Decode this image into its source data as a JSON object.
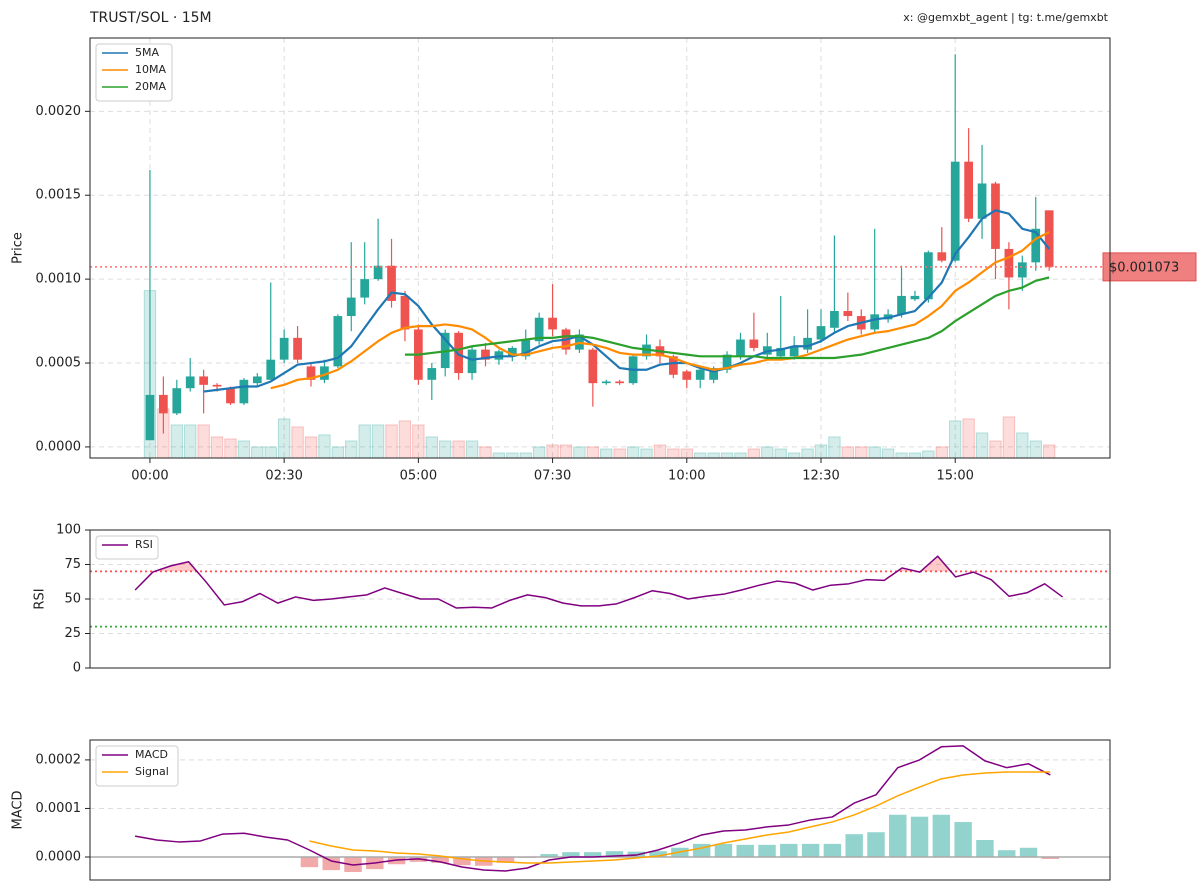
{
  "chart_data": [
    {
      "type": "candlestick",
      "title": "TRUST/SOL · 15M",
      "subtitle": "x: @gemxbt_agent | tg: t.me/gemxbt",
      "ylabel": "Price",
      "x": [
        0,
        15,
        30,
        45,
        60,
        75,
        90,
        105,
        120,
        135,
        150,
        165,
        180,
        195,
        210,
        225,
        240,
        255,
        270,
        285,
        300,
        315,
        330,
        345,
        360,
        375,
        390,
        405,
        420,
        435,
        450,
        465,
        480,
        495,
        510,
        525,
        540,
        555,
        570,
        585,
        600,
        615,
        630,
        645,
        660,
        675,
        690,
        705,
        720,
        735,
        750,
        765,
        780,
        795,
        810,
        825,
        840,
        855,
        870,
        885,
        900,
        915,
        930,
        945,
        960,
        975,
        990,
        1005
      ],
      "xlim": [
        -67,
        1073
      ],
      "xticks": [
        {
          "value": 0,
          "label": "00:00"
        },
        {
          "value": 150,
          "label": "02:30"
        },
        {
          "value": 300,
          "label": "05:00"
        },
        {
          "value": 450,
          "label": "07:30"
        },
        {
          "value": 600,
          "label": "10:00"
        },
        {
          "value": 750,
          "label": "12:30"
        },
        {
          "value": 900,
          "label": "15:00"
        }
      ],
      "ylim": [
        -6.6e-05,
        0.002437
      ],
      "yticks": [
        {
          "value": 0,
          "label": "0.0000"
        },
        {
          "value": 0.0005,
          "label": "0.0005"
        },
        {
          "value": 0.001,
          "label": "0.0010"
        },
        {
          "value": 0.0015,
          "label": "0.0015"
        },
        {
          "value": 0.002,
          "label": "0.0020"
        }
      ],
      "grid": true,
      "legend": "upper left",
      "up_color": "#26a69a",
      "down_color": "#ef5350",
      "open": [
        4e-05,
        0.00031,
        0.0002,
        0.00035,
        0.00042,
        0.00037,
        0.00035,
        0.00026,
        0.00038,
        0.0004,
        0.00052,
        0.00065,
        0.00048,
        0.0004,
        0.00048,
        0.00078,
        0.00089,
        0.001,
        0.00108,
        0.0009,
        0.0007,
        0.0004,
        0.00047,
        0.00068,
        0.00044,
        0.00058,
        0.00052,
        0.00054,
        0.00054,
        0.00063,
        0.00077,
        0.0007,
        0.00058,
        0.00058,
        0.00038,
        0.00039,
        0.00038,
        0.00054,
        0.0006,
        0.00054,
        0.00045,
        0.0004,
        0.0004,
        0.00046,
        0.00054,
        0.00064,
        0.00055,
        0.00054,
        0.00054,
        0.00058,
        0.00064,
        0.00071,
        0.00081,
        0.00078,
        0.0007,
        0.00076,
        0.00079,
        0.00088,
        0.00088,
        0.00116,
        0.00111,
        0.0017,
        0.00136,
        0.00157,
        0.00118,
        0.00101,
        0.0011,
        0.00141
      ],
      "high": [
        0.00165,
        0.00042,
        0.0004,
        0.00053,
        0.00046,
        0.00038,
        0.00036,
        0.00041,
        0.00044,
        0.00098,
        0.0007,
        0.00072,
        0.0005,
        0.00052,
        0.00079,
        0.00122,
        0.00122,
        0.00136,
        0.00124,
        0.00093,
        0.00073,
        0.0005,
        0.0007,
        0.00069,
        0.0006,
        0.00062,
        0.00058,
        0.0006,
        0.0007,
        0.0008,
        0.00097,
        0.00071,
        0.0007,
        0.00059,
        0.0004,
        0.0004,
        0.00055,
        0.00067,
        0.00064,
        0.00055,
        0.00046,
        0.00047,
        0.00048,
        0.00057,
        0.00068,
        0.0008,
        0.00068,
        0.0009,
        0.00066,
        0.00082,
        0.00082,
        0.00126,
        0.00092,
        0.00082,
        0.0013,
        0.00082,
        0.00108,
        0.00093,
        0.00117,
        0.00131,
        0.00234,
        0.0019,
        0.0018,
        0.00158,
        0.00122,
        0.00114,
        0.00149,
        0.00141
      ],
      "low": [
        4e-05,
        8e-05,
        0.00019,
        0.00033,
        0.0002,
        0.00033,
        0.00025,
        0.00025,
        0.00036,
        0.0004,
        0.0005,
        0.0005,
        0.00036,
        0.00038,
        0.00047,
        0.00069,
        0.00085,
        0.00099,
        0.00083,
        0.00063,
        0.00037,
        0.00028,
        0.00042,
        0.0004,
        0.0004,
        0.00048,
        0.00049,
        0.00051,
        0.00052,
        0.00061,
        0.00066,
        0.00055,
        0.00056,
        0.00024,
        0.00037,
        0.00037,
        0.00037,
        0.00052,
        0.0005,
        0.00041,
        0.00035,
        0.00035,
        0.00038,
        0.00044,
        0.00052,
        0.00057,
        0.00053,
        0.00052,
        0.00052,
        0.00056,
        0.00062,
        0.00068,
        0.00075,
        0.00067,
        0.00068,
        0.00074,
        0.00077,
        0.00087,
        0.00086,
        0.0011,
        0.0011,
        0.00134,
        0.00124,
        0.001,
        0.00082,
        0.00093,
        0.00105,
        0.00105
      ],
      "close": [
        0.00031,
        0.0002,
        0.00035,
        0.00042,
        0.00037,
        0.00036,
        0.00026,
        0.0004,
        0.00042,
        0.00052,
        0.00065,
        0.00052,
        0.0004,
        0.00048,
        0.00078,
        0.00089,
        0.001,
        0.00108,
        0.00087,
        0.0007,
        0.0004,
        0.00047,
        0.00068,
        0.00044,
        0.00058,
        0.00052,
        0.00057,
        0.00059,
        0.00064,
        0.00077,
        0.0007,
        0.00058,
        0.00067,
        0.00038,
        0.00039,
        0.00038,
        0.00054,
        0.00061,
        0.00054,
        0.00043,
        0.0004,
        0.00046,
        0.00047,
        0.00055,
        0.00064,
        0.00059,
        0.0006,
        0.00059,
        0.0006,
        0.00065,
        0.00072,
        0.00081,
        0.00078,
        0.0007,
        0.00079,
        0.00079,
        0.0009,
        0.0009,
        0.00116,
        0.00111,
        0.0017,
        0.00136,
        0.00157,
        0.00118,
        0.00101,
        0.0011,
        0.0013,
        0.001073
      ],
      "volume": [
        167,
        49,
        33,
        33,
        33,
        21,
        19,
        17,
        11,
        11,
        39,
        31,
        21,
        23,
        11,
        17,
        33,
        33,
        33,
        37,
        33,
        21,
        17,
        17,
        17,
        11,
        5,
        5,
        5,
        11,
        13,
        13,
        11,
        11,
        9,
        9,
        11,
        9,
        13,
        9,
        9,
        5,
        5,
        5,
        5,
        9,
        11,
        9,
        5,
        9,
        13,
        21,
        11,
        11,
        11,
        9,
        5,
        5,
        7,
        11,
        37,
        39,
        25,
        17,
        41,
        25,
        17,
        13
      ],
      "vlim": [
        0,
        419
      ],
      "series": [
        {
          "name": "5MA",
          "color": "#1f77b4",
          "values": [
            null,
            null,
            null,
            null,
            0.00033,
            0.00034,
            0.00035,
            0.00036,
            0.00036,
            0.00039,
            0.00044,
            0.00049,
            0.0005,
            0.00051,
            0.00053,
            0.0006,
            0.00071,
            0.00082,
            0.00092,
            0.00091,
            0.00084,
            0.00073,
            0.00064,
            0.00055,
            0.00052,
            0.00053,
            0.00054,
            0.00054,
            0.00056,
            0.0006,
            0.00063,
            0.00064,
            0.00066,
            0.00061,
            0.00054,
            0.00047,
            0.00046,
            0.00046,
            0.00049,
            0.0005,
            0.0005,
            0.00047,
            0.00045,
            0.00047,
            0.0005,
            0.00054,
            0.00057,
            0.00058,
            0.0006,
            0.0006,
            0.00063,
            0.00068,
            0.00072,
            0.00074,
            0.00076,
            0.00077,
            0.00079,
            0.00081,
            0.00089,
            0.00098,
            0.00115,
            0.00125,
            0.00136,
            0.00141,
            0.00139,
            0.0013,
            0.00128,
            0.00118
          ]
        },
        {
          "name": "10MA",
          "color": "#ff8c00",
          "values": [
            null,
            null,
            null,
            null,
            null,
            null,
            null,
            null,
            null,
            0.00035,
            0.00037,
            0.0004,
            0.00041,
            0.00043,
            0.00046,
            0.00051,
            0.00057,
            0.00063,
            0.00068,
            0.00071,
            0.00072,
            0.00072,
            0.00073,
            0.00072,
            0.0007,
            0.00065,
            0.00059,
            0.00055,
            0.00055,
            0.00057,
            0.00059,
            0.0006,
            0.00062,
            0.00061,
            0.00059,
            0.00056,
            0.00055,
            0.00055,
            0.00055,
            0.00053,
            0.0005,
            0.00048,
            0.00046,
            0.00047,
            0.00049,
            0.0005,
            0.00052,
            0.00052,
            0.00053,
            0.00055,
            0.00058,
            0.00061,
            0.00064,
            0.00066,
            0.00068,
            0.00069,
            0.00071,
            0.00073,
            0.00078,
            0.00084,
            0.00093,
            0.00098,
            0.00104,
            0.0011,
            0.00113,
            0.00117,
            0.00124,
            0.00128
          ]
        },
        {
          "name": "20MA",
          "color": "#2ca02c",
          "values": [
            null,
            null,
            null,
            null,
            null,
            null,
            null,
            null,
            null,
            null,
            null,
            null,
            null,
            null,
            null,
            null,
            null,
            null,
            null,
            0.00055,
            0.00055,
            0.00056,
            0.00057,
            0.00058,
            0.0006,
            0.00061,
            0.00062,
            0.00063,
            0.00064,
            0.00065,
            0.00065,
            0.00066,
            0.00066,
            0.00065,
            0.00063,
            0.00061,
            0.00059,
            0.00058,
            0.00057,
            0.00056,
            0.00055,
            0.00054,
            0.00054,
            0.00054,
            0.00054,
            0.00054,
            0.00053,
            0.00053,
            0.00053,
            0.00053,
            0.00053,
            0.00053,
            0.00054,
            0.00055,
            0.00057,
            0.00059,
            0.00061,
            0.00063,
            0.00065,
            0.00069,
            0.00075,
            0.0008,
            0.00085,
            0.0009,
            0.00093,
            0.00095,
            0.00099,
            0.00101
          ]
        }
      ],
      "last_price": {
        "value": 0.001073,
        "label": "$0.001073"
      },
      "last_price_color": "#f08080"
    },
    {
      "type": "line",
      "ylabel": "RSI",
      "x": [
        0,
        1,
        2,
        3,
        4,
        5,
        6,
        7,
        8,
        9,
        10,
        11,
        12,
        13,
        14,
        15,
        16,
        17,
        18,
        19,
        20,
        21,
        22,
        23,
        24,
        25,
        26,
        27,
        28,
        29,
        30,
        31,
        32,
        33,
        34,
        35,
        36,
        37,
        38,
        39,
        40,
        41,
        42,
        43,
        44,
        45,
        46,
        47,
        48,
        49,
        50,
        51,
        52
      ],
      "xlim": [
        -2.53,
        54.66
      ],
      "ylim": [
        0,
        100
      ],
      "yticks": [
        0,
        25,
        50,
        75,
        100
      ],
      "grid": true,
      "legend": "upper left",
      "thresholds": [
        {
          "value": 70,
          "color": "#ff4d4d",
          "fill": true
        },
        {
          "value": 30,
          "color": "#33aa33"
        }
      ],
      "series": [
        {
          "name": "RSI",
          "color": "#800080",
          "values": [
            56.5,
            69.6,
            74,
            77,
            62,
            45.7,
            48,
            54,
            47,
            51.5,
            49,
            50,
            51.5,
            53,
            58,
            54,
            50,
            50,
            43.5,
            44,
            43.5,
            49,
            53,
            51,
            47,
            45,
            45,
            46.5,
            51,
            56,
            54,
            50,
            52,
            53.5,
            56.5,
            60,
            63,
            61.5,
            56.5,
            60,
            61,
            64,
            63.5,
            72.5,
            69.5,
            81,
            66,
            69.5,
            64,
            52,
            54.5,
            61,
            51.5
          ]
        }
      ]
    },
    {
      "type": "line",
      "ylabel": "MACD",
      "x": [
        0,
        1,
        2,
        3,
        4,
        5,
        6,
        7,
        8,
        9,
        10,
        11,
        12,
        13,
        14,
        15,
        16,
        17,
        18,
        19,
        20,
        21,
        22,
        23,
        24,
        25,
        26,
        27,
        28,
        29,
        30,
        31,
        32,
        33,
        34,
        35,
        36,
        37,
        38,
        39,
        40,
        41,
        42
      ],
      "xlim": [
        -2.07,
        44.74
      ],
      "ylim": [
        -4.74e-05,
        0.000241
      ],
      "yticks": [
        {
          "value": 0,
          "label": "0.0000"
        },
        {
          "value": 0.0001,
          "label": "0.0001"
        },
        {
          "value": 0.0002,
          "label": "0.0002"
        }
      ],
      "grid": true,
      "legend": "upper left",
      "zero_line": true,
      "histogram": {
        "up_color": "#80cbc4",
        "down_color": "#ef9a9a",
        "values": [
          null,
          null,
          null,
          null,
          null,
          null,
          null,
          null,
          -2.1e-05,
          -2.7e-05,
          -3.1e-05,
          -2.5e-05,
          -1.5e-05,
          -1e-05,
          -1.2e-05,
          -1.7e-05,
          -1.8e-05,
          -1.2e-05,
          -2e-06,
          6e-06,
          1e-05,
          1e-05,
          1.2e-05,
          1.1e-05,
          1.2e-05,
          1.9e-05,
          2.7e-05,
          2.7e-05,
          2.5e-05,
          2.5e-05,
          2.7e-05,
          2.7e-05,
          2.7e-05,
          4.7e-05,
          5.1e-05,
          8.7e-05,
          8.3e-05,
          8.7e-05,
          7.2e-05,
          3.5e-05,
          1.4e-05,
          1.9e-05,
          -4e-06
        ]
      },
      "series": [
        {
          "name": "MACD",
          "color": "#800080",
          "values": [
            4.3e-05,
            3.5e-05,
            3.1e-05,
            3.3e-05,
            4.7e-05,
            4.9e-05,
            4.1e-05,
            3.5e-05,
            1.44e-05,
            -8.2e-06,
            -1.65e-05,
            -1.24e-05,
            -6.2e-06,
            -4e-06,
            -1e-05,
            -2.06e-05,
            -2.68e-05,
            -2.89e-05,
            -2.27e-05,
            -6.2e-06,
            0,
            0,
            2e-06,
            4e-06,
            1.44e-05,
            2.89e-05,
            4.54e-05,
            5.36e-05,
            5.57e-05,
            6.2e-05,
            6.6e-05,
            7.63e-05,
            8.25e-05,
            0.000111,
            0.000128,
            0.000184,
            0.0002,
            0.000227,
            0.000229,
            0.000198,
            0.000184,
            0.000192,
            0.000169
          ]
        },
        {
          "name": "Signal",
          "color": "#ffa500",
          "values": [
            null,
            null,
            null,
            null,
            null,
            null,
            null,
            null,
            3.3e-05,
            2.27e-05,
            1.44e-05,
            1.24e-05,
            8.2e-06,
            6.2e-06,
            2e-06,
            -4e-06,
            -8.2e-06,
            -1.03e-05,
            -1.24e-05,
            -1.24e-05,
            -1.03e-05,
            -8.2e-06,
            -6.2e-06,
            -2e-06,
            2e-06,
            1.03e-05,
            1.86e-05,
            2.89e-05,
            3.71e-05,
            4.54e-05,
            5.15e-05,
            6.2e-05,
            7.22e-05,
            8.66e-05,
            0.000105,
            0.000126,
            0.000144,
            0.000161,
            0.000169,
            0.000173,
            0.000175,
            0.000175,
            0.000175
          ]
        }
      ]
    }
  ]
}
